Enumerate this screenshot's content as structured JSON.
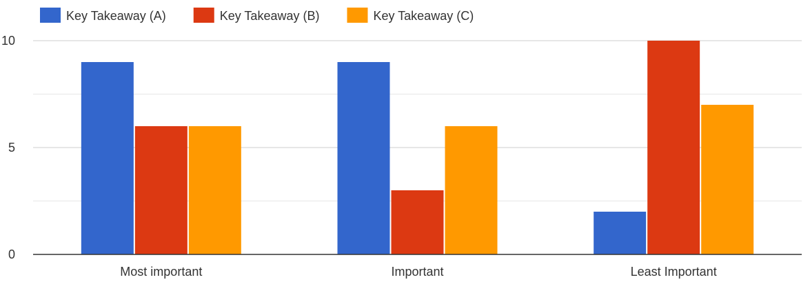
{
  "chart_data": {
    "type": "bar",
    "title": "",
    "xlabel": "",
    "ylabel": "",
    "categories": [
      "Most important",
      "Important",
      "Least Important"
    ],
    "series": [
      {
        "name": "Key Takeaway (A)",
        "color": "#3366cc",
        "values": [
          9,
          9,
          2
        ]
      },
      {
        "name": "Key Takeaway (B)",
        "color": "#dc3912",
        "values": [
          6,
          3,
          10
        ]
      },
      {
        "name": "Key Takeaway (C)",
        "color": "#ff9900",
        "values": [
          6,
          6,
          7
        ]
      }
    ],
    "ylim": [
      0,
      10
    ],
    "yticks": [
      "0",
      "5",
      "10"
    ],
    "gridlines": true,
    "legend_position": "top-left"
  }
}
